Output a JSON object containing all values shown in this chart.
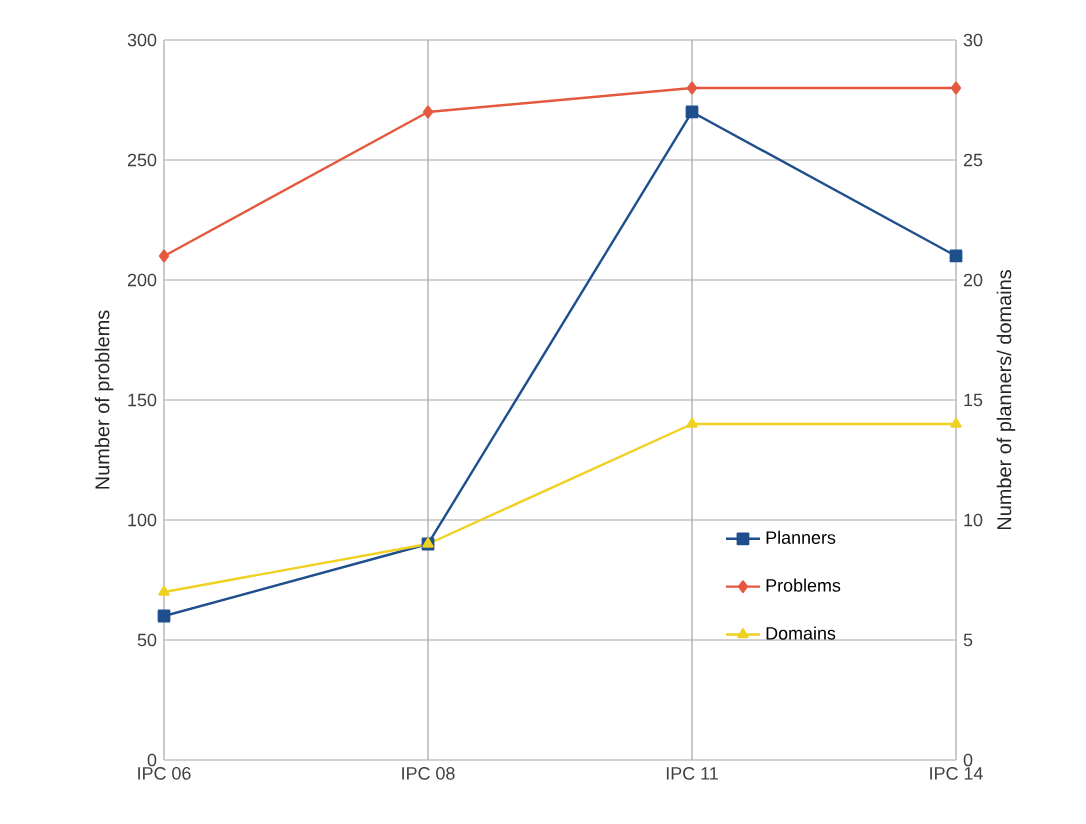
{
  "chart_data": {
    "type": "line",
    "ylabel": "Number of problems",
    "y2label": "Number of planners/ domains",
    "categories": [
      "IPC 06",
      "IPC 08",
      "IPC 11",
      "IPC 14"
    ],
    "series": [
      {
        "name": "Planners",
        "color": "#1f4e8c",
        "values": [
          6,
          9,
          27,
          21
        ],
        "axis": "y2",
        "marker": "square"
      },
      {
        "name": "Problems",
        "color": "#e4583e",
        "values": [
          210,
          270,
          280,
          280
        ],
        "marker": "diamond"
      },
      {
        "name": "Domains",
        "color": "#f0d020",
        "values": [
          7,
          9,
          14,
          14
        ],
        "axis": "y2",
        "marker": "triangle"
      }
    ],
    "ylim": [
      0,
      300
    ],
    "yticks": [
      0,
      50,
      100,
      150,
      200,
      250,
      300
    ],
    "y2lim": [
      0,
      30
    ],
    "y2ticks": [
      0,
      5,
      10,
      15,
      20,
      25,
      30
    ],
    "grid": true,
    "legend": "right",
    "line_style": "solid"
  }
}
